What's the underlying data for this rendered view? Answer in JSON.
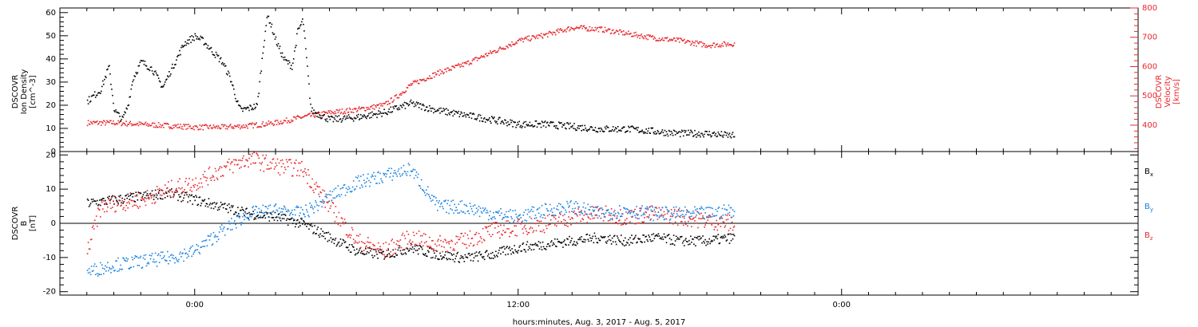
{
  "colors": {
    "black": "#000000",
    "red": "#e8282d",
    "blue": "#1a82e0",
    "background": "#ffffff"
  },
  "time_axis": {
    "title": "hours:minutes, Aug. 3, 2017 - Aug. 5, 2017",
    "range_hours": [
      -5,
      35
    ],
    "major_ticks": [
      {
        "hour": 0,
        "label": "0:00"
      },
      {
        "hour": 12,
        "label": "12:00"
      },
      {
        "hour": 24,
        "label": "0:00"
      }
    ],
    "minor_tick_hours": 1
  },
  "chart_data": [
    {
      "type": "scatter",
      "panel": "plasma",
      "ylabel_left": [
        "DSCOVR",
        "Ion Density",
        "[cm^-3]"
      ],
      "ylabel_right": [
        "DSCOVR",
        "Velocity",
        "[km/s]"
      ],
      "ylim_left": [
        0,
        62
      ],
      "ylim_right": [
        310,
        800
      ],
      "yticks_left": [
        0,
        10,
        20,
        30,
        40,
        50,
        60
      ],
      "yticks_right": [
        400,
        500,
        600,
        700,
        800
      ],
      "series": [
        {
          "axis": "left",
          "color": "#000000",
          "hours": [
            -4,
            -3.5,
            -3.2,
            -3.0,
            -2.7,
            -2.5,
            -2.3,
            -2.0,
            -1.6,
            -1.2,
            -1.0,
            -0.7,
            -0.4,
            0.0,
            0.3,
            0.6,
            1.0,
            1.3,
            1.6,
            1.7,
            2.0,
            2.3,
            2.6,
            2.7,
            3.0,
            3.3,
            3.6,
            3.8,
            4.0,
            4.3,
            5.0,
            6.0,
            7.0,
            8.0,
            9.0,
            10.0,
            11.0,
            12.0,
            13.0,
            14.0,
            15.0,
            16.0,
            17.0,
            18.0,
            19.0,
            20.0
          ],
          "values": [
            22,
            27,
            37,
            18,
            14,
            20,
            32,
            39,
            36,
            28,
            33,
            40,
            47,
            50,
            48,
            44,
            39,
            32,
            20,
            18,
            19,
            20,
            53,
            59,
            48,
            40,
            37,
            52,
            57,
            18,
            14,
            15,
            17,
            21,
            18,
            16,
            14,
            12,
            12,
            11,
            10,
            10,
            9,
            8,
            8,
            7
          ]
        },
        {
          "axis": "right",
          "color": "#e8282d",
          "hours": [
            -4,
            -3,
            -2,
            -1,
            0,
            1,
            2,
            3,
            4,
            5,
            6,
            7,
            7.5,
            8,
            9,
            10,
            11,
            12,
            13,
            14,
            15,
            16,
            17,
            18,
            19,
            20
          ],
          "values": [
            410,
            410,
            405,
            400,
            395,
            395,
            400,
            410,
            430,
            445,
            455,
            470,
            500,
            540,
            580,
            610,
            650,
            690,
            710,
            735,
            730,
            715,
            700,
            690,
            675,
            680
          ]
        }
      ]
    },
    {
      "type": "scatter",
      "panel": "magnetic field",
      "ylabel_left": [
        "DSCOVR",
        "B",
        "[nT]"
      ],
      "ylim": [
        -21,
        21
      ],
      "yticks": [
        -20,
        -10,
        0,
        10,
        20
      ],
      "zero_line": true,
      "series": [
        {
          "name": "B_x",
          "label_main": "B",
          "label_sub": "x",
          "color": "#000000",
          "hours": [
            -4,
            -3,
            -2,
            -1,
            0,
            1,
            2,
            3,
            4,
            5,
            6,
            7,
            8,
            9,
            10,
            11,
            12,
            13,
            14,
            15,
            16,
            17,
            18,
            19,
            20
          ],
          "values": [
            6,
            7,
            8,
            9,
            7,
            5,
            3,
            2,
            0,
            -4,
            -8,
            -9,
            -7,
            -9,
            -10,
            -9,
            -7,
            -6,
            -5,
            -4,
            -5,
            -4,
            -5,
            -5,
            -4
          ]
        },
        {
          "name": "B_y",
          "label_main": "B",
          "label_sub": "y",
          "color": "#1a82e0",
          "hours": [
            -4,
            -3,
            -2,
            -1,
            0,
            1,
            2,
            3,
            4,
            5,
            6,
            7,
            8,
            9,
            10,
            11,
            12,
            13,
            14,
            15,
            16,
            17,
            18,
            19,
            20
          ],
          "values": [
            -14,
            -12,
            -11,
            -10,
            -8,
            -2,
            3,
            4,
            3,
            8,
            12,
            14,
            16,
            5,
            5,
            3,
            2,
            4,
            5,
            3,
            4,
            3,
            3,
            3,
            4
          ]
        },
        {
          "name": "B_z",
          "label_main": "B",
          "label_sub": "z",
          "color": "#e8282d",
          "hours": [
            -4,
            -3.5,
            -3,
            -2,
            -1,
            0,
            1,
            2,
            3,
            4,
            5,
            6,
            7,
            8,
            9,
            10,
            11,
            12,
            13,
            14,
            15,
            16,
            17,
            18,
            19,
            20
          ],
          "values": [
            -8,
            5,
            6,
            7,
            10,
            12,
            16,
            19,
            17,
            16,
            5,
            -5,
            -8,
            -4,
            -6,
            -5,
            -2,
            -1,
            0,
            2,
            3,
            2,
            3,
            2,
            1,
            0
          ]
        }
      ]
    }
  ]
}
